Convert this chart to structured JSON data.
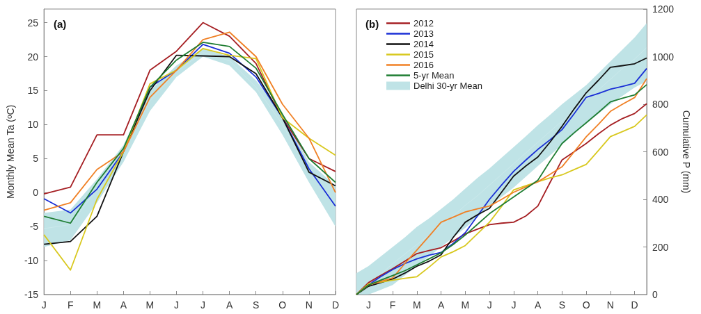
{
  "chart_data": [
    {
      "type": "line",
      "title": "(a)",
      "ylabel": "Monthly Mean Ta ($^{o}$C)",
      "categories": [
        "J",
        "F",
        "M",
        "A",
        "M",
        "J",
        "J",
        "A",
        "S",
        "O",
        "N",
        "D"
      ],
      "ylim": [
        -15,
        27
      ],
      "yticks": [
        -15,
        -10,
        -5,
        0,
        5,
        10,
        15,
        20,
        25
      ],
      "grid": false,
      "legend": false,
      "marker": "none",
      "series": [
        {
          "color": "#bfe3e6",
          "values": [
            -5.3,
            -4.7,
            0.5,
            6,
            13.5,
            17.8,
            20.6,
            19.4,
            15.5,
            10,
            3,
            -1.5
          ],
          "lower": [
            -8,
            -7,
            -1.5,
            4.5,
            12,
            17,
            20,
            18.7,
            14.8,
            8.5,
            1.5,
            -5
          ],
          "upper": [
            -3,
            -2.5,
            2,
            7,
            15,
            18.7,
            21.2,
            20,
            16.5,
            11.5,
            4.5,
            1
          ]
        },
        {
          "color": "#a51e22",
          "values": [
            -0.2,
            0.8,
            8.5,
            8.5,
            18,
            20.8,
            25,
            23,
            19,
            11,
            5,
            3.1
          ]
        },
        {
          "color": "#1a2fd6",
          "values": [
            -0.9,
            -3,
            0.5,
            6,
            15.5,
            18,
            21.8,
            20.5,
            17,
            11,
            3.5,
            -2
          ]
        },
        {
          "color": "#111111",
          "values": [
            -7.6,
            -7.2,
            -3.5,
            6,
            15,
            20.2,
            20.1,
            20,
            17.5,
            11,
            3,
            1
          ]
        },
        {
          "color": "#d8c81e",
          "values": [
            -6.2,
            -11.4,
            -1,
            6,
            16,
            18,
            21.2,
            20.2,
            19.7,
            11,
            8,
            5.5
          ]
        },
        {
          "color": "#f08025",
          "values": [
            -2.6,
            -1.5,
            3.4,
            6,
            14,
            18,
            22.5,
            23.6,
            20,
            13,
            8,
            0
          ]
        },
        {
          "color": "#1e7d32",
          "values": [
            -3.5,
            -4.5,
            1.5,
            6.5,
            15.5,
            19.5,
            22.1,
            21.5,
            18.3,
            11.5,
            5,
            1.5
          ]
        }
      ]
    },
    {
      "type": "line",
      "title": "(b)",
      "y2label": "Cumulative P (mm)",
      "categories": [
        null,
        "J",
        null,
        "F",
        null,
        "M",
        null,
        "A",
        null,
        "M",
        null,
        "J",
        null,
        "J",
        null,
        "A",
        null,
        "S",
        null,
        "O",
        null,
        "N",
        null,
        "D",
        null
      ],
      "y2lim": [
        0,
        1200
      ],
      "y2ticks": [
        0,
        200,
        400,
        600,
        800,
        1000,
        1200
      ],
      "grid": false,
      "legend": "top left",
      "marker": "none",
      "series": [
        {
          "name": "Delhi 30-yr Mean",
          "color": "#bfe3e6",
          "axis": "y2",
          "values": [
            0,
            40,
            85,
            130,
            170,
            210,
            250,
            290,
            330,
            375,
            415,
            460,
            505,
            550,
            595,
            640,
            685,
            730,
            775,
            820,
            860,
            905,
            950,
            990,
            1038
          ],
          "lower": [
            0,
            0,
            20,
            40,
            80,
            120,
            160,
            200,
            240,
            280,
            325,
            370,
            410,
            450,
            495,
            540,
            585,
            630,
            675,
            720,
            760,
            800,
            835,
            870,
            897
          ],
          "upper": [
            90,
            120,
            160,
            200,
            240,
            285,
            320,
            360,
            400,
            445,
            490,
            530,
            575,
            620,
            665,
            712,
            755,
            800,
            840,
            880,
            930,
            980,
            1030,
            1080,
            1141
          ]
        },
        {
          "name": "2012",
          "color": "#a51e22",
          "axis": "y2",
          "values": [
            0,
            50,
            80,
            109,
            140,
            172,
            185,
            197,
            225,
            255,
            275,
            294,
            300,
            304,
            330,
            372,
            470,
            566,
            600,
            635,
            675,
            712,
            740,
            761,
            802
          ]
        },
        {
          "name": "2013",
          "color": "#1a2fd6",
          "axis": "y2",
          "values": [
            0,
            40,
            75,
            105,
            130,
            150,
            165,
            177,
            215,
            260,
            330,
            400,
            460,
            518,
            565,
            610,
            650,
            693,
            760,
            829,
            845,
            863,
            875,
            888,
            950
          ]
        },
        {
          "name": "2014",
          "color": "#111111",
          "axis": "y2",
          "values": [
            0,
            35,
            50,
            65,
            90,
            119,
            140,
            167,
            240,
            304,
            335,
            362,
            430,
            498,
            540,
            578,
            640,
            707,
            780,
            848,
            900,
            955,
            962,
            970,
            994
          ]
        },
        {
          "name": "2015",
          "color": "#d8c81e",
          "axis": "y2",
          "values": [
            0,
            45,
            52,
            60,
            68,
            75,
            115,
            158,
            180,
            206,
            255,
            304,
            370,
            440,
            457,
            474,
            490,
            503,
            525,
            547,
            605,
            664,
            685,
            707,
            755
          ]
        },
        {
          "name": "2016",
          "color": "#f08025",
          "axis": "y2",
          "values": [
            0,
            40,
            55,
            70,
            130,
            187,
            245,
            304,
            325,
            347,
            360,
            372,
            400,
            430,
            452,
            474,
            505,
            537,
            600,
            663,
            715,
            770,
            800,
            828,
            907
          ]
        },
        {
          "name": "5-yr Mean",
          "color": "#1e7d32",
          "axis": "y2",
          "values": [
            0,
            40,
            60,
            80,
            100,
            125,
            150,
            175,
            210,
            250,
            295,
            340,
            375,
            410,
            445,
            480,
            560,
            635,
            680,
            722,
            765,
            810,
            825,
            839,
            882
          ]
        }
      ]
    }
  ]
}
